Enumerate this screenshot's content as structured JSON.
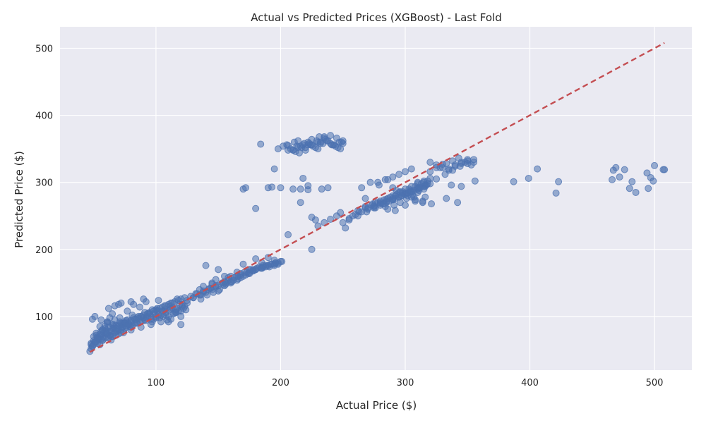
{
  "chart_data": {
    "type": "scatter",
    "title": "Actual vs Predicted Prices (XGBoost) - Last Fold",
    "xlabel": "Actual Price ($)",
    "ylabel": "Predicted Price ($)",
    "xlim": [
      23,
      530
    ],
    "ylim": [
      20,
      532
    ],
    "xticks": [
      100,
      200,
      300,
      400,
      500
    ],
    "yticks": [
      100,
      200,
      300,
      400,
      500
    ],
    "grid": true,
    "background_color": "#EAEAF2",
    "point_color": "#4C72B0",
    "reference_line": {
      "x": [
        47,
        508
      ],
      "y": [
        47,
        508
      ],
      "color": "#C44E52",
      "style": "dashed"
    },
    "series": [
      {
        "x": [
          48,
          52,
          55,
          58,
          61,
          64,
          67,
          70,
          73,
          76,
          79,
          82,
          85,
          88,
          91,
          94,
          97,
          100,
          103,
          106,
          109,
          112,
          115,
          118,
          121,
          124,
          50,
          54,
          57,
          60,
          63,
          66,
          69,
          72,
          75,
          78,
          81,
          84,
          87,
          90,
          93,
          96,
          99,
          102,
          105,
          108,
          111,
          114,
          117,
          120,
          123,
          49,
          53,
          56,
          59,
          62,
          65,
          68,
          71,
          74,
          77,
          80,
          83,
          86,
          89,
          92,
          95,
          98,
          101,
          104,
          107,
          110,
          113,
          116,
          119,
          122,
          125,
          51,
          56,
          61,
          66,
          71,
          76,
          81,
          86,
          91,
          96,
          101,
          106,
          111,
          116,
          121,
          48,
          50,
          52,
          54,
          56,
          58,
          60,
          62,
          64,
          66,
          68,
          70,
          72,
          74,
          76,
          78,
          80,
          49,
          51,
          53,
          55,
          57,
          59,
          61,
          63,
          65,
          67,
          69,
          71,
          73,
          75,
          50,
          55,
          60,
          65,
          70,
          75,
          80,
          85,
          90,
          95,
          100,
          105,
          110,
          115,
          120,
          53,
          58,
          63,
          68,
          73,
          78,
          83,
          88,
          93,
          98,
          103,
          108,
          113,
          118,
          123,
          48,
          52,
          56,
          60,
          64,
          68,
          72,
          76,
          80,
          84,
          88,
          92,
          96,
          100,
          104,
          108,
          112,
          116,
          120,
          62,
          67,
          72,
          77,
          82,
          87,
          92,
          97,
          102,
          107,
          112,
          117,
          47,
          49,
          51,
          53,
          55,
          57,
          59,
          61,
          63,
          65,
          70,
          80,
          90,
          100,
          110,
          120,
          125,
          130,
          135,
          140,
          145,
          150,
          155,
          160,
          165,
          170,
          175,
          180,
          185,
          190,
          195,
          200,
          128,
          133,
          138,
          143,
          148,
          153,
          158,
          163,
          168,
          173,
          178,
          183,
          188,
          193,
          198,
          130,
          136,
          142,
          148,
          154,
          160,
          166,
          172,
          178,
          184,
          190,
          196,
          132,
          138,
          144,
          150,
          156,
          162,
          168,
          174,
          180,
          186,
          192,
          136,
          141,
          146,
          151,
          156,
          161,
          166,
          171,
          176,
          181,
          186,
          191,
          196,
          201,
          140,
          150,
          160,
          170,
          180,
          190,
          145,
          155,
          165,
          175,
          185,
          195,
          138,
          148,
          158,
          168,
          178,
          188,
          198,
          135,
          145,
          155,
          165,
          175,
          185,
          195,
          206,
          210,
          214,
          218,
          222,
          226,
          230,
          234,
          238,
          242,
          246,
          250,
          208,
          212,
          216,
          220,
          224,
          228,
          232,
          236,
          240,
          244,
          248,
          205,
          211,
          217,
          223,
          229,
          235,
          241,
          247,
          210,
          215,
          220,
          225,
          230,
          235,
          240,
          245,
          250,
          213,
          219,
          225,
          231,
          237,
          243,
          249,
          198,
          202,
          206,
          214,
          222,
          232,
          184,
          195,
          170,
          172,
          190,
          200,
          210,
          216,
          218,
          222,
          233,
          238,
          180,
          193,
          206,
          216,
          222,
          225,
          230,
          235,
          240,
          245,
          248,
          252,
          225,
          228,
          250,
          255,
          260,
          265,
          270,
          275,
          280,
          285,
          290,
          295,
          300,
          305,
          310,
          315,
          320,
          258,
          263,
          268,
          273,
          278,
          283,
          288,
          293,
          298,
          303,
          308,
          313,
          318,
          262,
          268,
          274,
          280,
          286,
          292,
          298,
          304,
          310,
          316,
          270,
          275,
          280,
          285,
          290,
          295,
          300,
          305,
          310,
          315,
          320,
          275,
          280,
          285,
          290,
          295,
          300,
          305,
          310,
          315,
          265,
          272,
          279,
          286,
          293,
          300,
          307,
          314,
          321,
          278,
          284,
          290,
          296,
          302,
          308,
          314,
          282,
          287,
          292,
          297,
          302,
          307,
          312,
          317,
          286,
          291,
          296,
          301,
          306,
          311,
          316,
          290,
          295,
          300,
          305,
          310,
          315,
          268,
          276,
          284,
          292,
          300,
          308,
          316,
          255,
          262,
          269,
          276,
          283,
          290,
          297,
          304,
          311,
          318,
          305,
          310,
          315,
          320,
          325,
          330,
          320,
          325,
          330,
          335,
          340,
          345,
          350,
          355,
          328,
          333,
          338,
          343,
          348,
          353,
          335,
          340,
          345,
          350,
          355,
          325,
          332,
          338,
          344,
          350,
          356,
          342,
          337,
          345,
          333,
          387,
          399,
          406,
          421,
          423,
          466,
          467,
          469,
          472,
          476,
          480,
          482,
          485,
          494,
          495,
          497,
          499,
          500,
          507,
          508
        ],
        "y": [
          60,
          75,
          85,
          70,
          90,
          65,
          95,
          80,
          88,
          92,
          85,
          98,
          90,
          100,
          95,
          105,
          92,
          110,
          98,
          100,
          95,
          112,
          105,
          108,
          115,
          110,
          70,
          68,
          80,
          75,
          72,
          85,
          78,
          90,
          82,
          88,
          86,
          95,
          92,
          98,
          100,
          96,
          104,
          102,
          108,
          106,
          110,
          104,
          112,
          108,
          115,
          55,
          65,
          78,
          82,
          68,
          88,
          72,
          92,
          76,
          95,
          84,
          90,
          100,
          93,
          98,
          104,
          96,
          108,
          102,
          110,
          100,
          113,
          106,
          118,
          112,
          120,
          100,
          95,
          92,
          88,
          98,
          94,
          102,
          97,
          106,
          100,
          112,
          108,
          115,
          110,
          118,
          52,
          58,
          62,
          66,
          72,
          76,
          80,
          84,
          78,
          82,
          86,
          74,
          80,
          90,
          84,
          88,
          92,
          96,
          62,
          70,
          58,
          64,
          68,
          74,
          78,
          70,
          76,
          82,
          88,
          84,
          90,
          64,
          70,
          76,
          82,
          86,
          90,
          94,
          98,
          102,
          106,
          110,
          114,
          118,
          122,
          126,
          60,
          66,
          72,
          78,
          84,
          90,
          96,
          100,
          104,
          108,
          112,
          116,
          120,
          124,
          128,
          58,
          72,
          66,
          78,
          70,
          82,
          76,
          86,
          80,
          90,
          84,
          94,
          88,
          98,
          92,
          102,
          96,
          106,
          100,
          112,
          116,
          120,
          108,
          118,
          114,
          122,
          110,
          124,
          116,
          120,
          126,
          48,
          56,
          62,
          68,
          74,
          80,
          86,
          92,
          98,
          104,
          118,
          122,
          126,
          100,
          92,
          88,
          124,
          128,
          132,
          136,
          140,
          138,
          146,
          150,
          154,
          160,
          164,
          170,
          172,
          176,
          178,
          182,
          130,
          134,
          136,
          142,
          146,
          150,
          154,
          158,
          162,
          166,
          170,
          174,
          176,
          178,
          180,
          128,
          132,
          140,
          144,
          148,
          152,
          156,
          162,
          168,
          172,
          176,
          180,
          134,
          138,
          142,
          146,
          150,
          154,
          158,
          164,
          170,
          174,
          178,
          126,
          132,
          136,
          140,
          148,
          152,
          160,
          166,
          170,
          172,
          176,
          174,
          180,
          182,
          176,
          170,
          160,
          178,
          186,
          188,
          150,
          160,
          166,
          170,
          180,
          184,
          145,
          155,
          158,
          164,
          168,
          174,
          178,
          140,
          148,
          152,
          160,
          166,
          172,
          176,
          355,
          348,
          352,
          356,
          360,
          354,
          350,
          358,
          362,
          356,
          352,
          358,
          350,
          346,
          354,
          348,
          356,
          352,
          360,
          364,
          358,
          354,
          350,
          356,
          360,
          352,
          358,
          362,
          366,
          356,
          360,
          348,
          344,
          352,
          356,
          360,
          368,
          370,
          366,
          362,
          354,
          358,
          364,
          368,
          362,
          356,
          360,
          350,
          354,
          348,
          362,
          356,
          358,
          357,
          320,
          290,
          292,
          292,
          292,
          290,
          290,
          306,
          295,
          290,
          292,
          261,
          293,
          222,
          270,
          289,
          200,
          235,
          240,
          245,
          250,
          255,
          232,
          248,
          244,
          240,
          246,
          252,
          256,
          262,
          264,
          268,
          272,
          276,
          278,
          282,
          286,
          290,
          294,
          298,
          250,
          256,
          262,
          266,
          270,
          274,
          278,
          282,
          286,
          290,
          294,
          298,
          302,
          258,
          264,
          268,
          272,
          276,
          280,
          284,
          288,
          292,
          296,
          260,
          265,
          270,
          275,
          280,
          285,
          290,
          294,
          298,
          302,
          306,
          262,
          266,
          270,
          274,
          278,
          282,
          286,
          290,
          294,
          292,
          300,
          296,
          304,
          288,
          284,
          278,
          272,
          268,
          300,
          304,
          292,
          286,
          280,
          274,
          270,
          268,
          272,
          276,
          280,
          284,
          288,
          292,
          296,
          260,
          266,
          270,
          276,
          282,
          288,
          294,
          308,
          312,
          316,
          320,
          300,
          290,
          276,
          270,
          264,
          258,
          266,
          272,
          278,
          244,
          250,
          256,
          262,
          268,
          274,
          280,
          286,
          292,
          298,
          278,
          285,
          300,
          316,
          322,
          327,
          330,
          326,
          322,
          318,
          324,
          328,
          332,
          334,
          322,
          328,
          332,
          336,
          330,
          326,
          320,
          326,
          330,
          334,
          330,
          305,
          312,
          318,
          324,
          328,
          302,
          270,
          296,
          294,
          276,
          301,
          306,
          320,
          284,
          301,
          304,
          318,
          322,
          308,
          319,
          291,
          301,
          285,
          314,
          291,
          307,
          302,
          325,
          319,
          319
        ]
      }
    ]
  }
}
